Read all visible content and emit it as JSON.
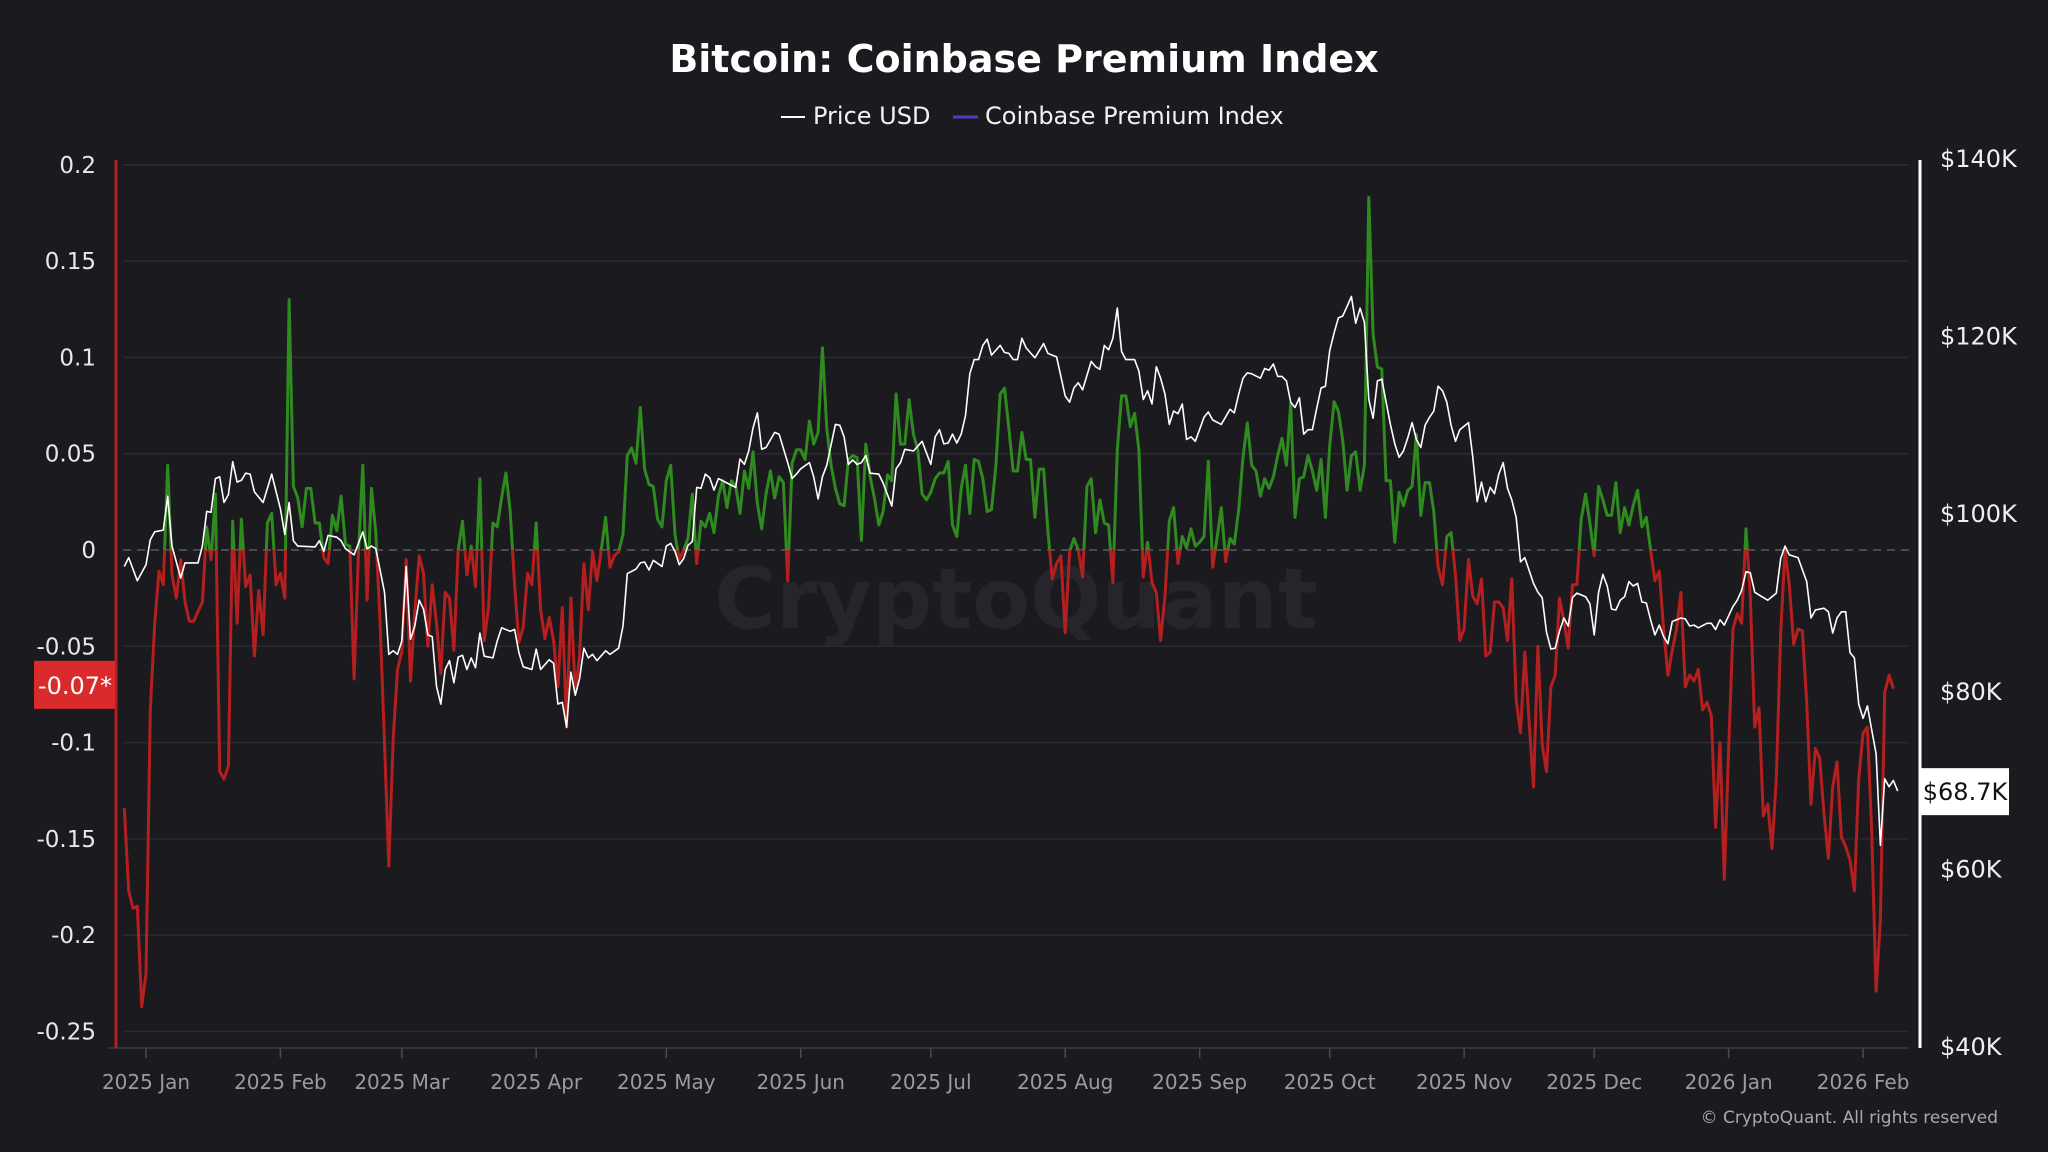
{
  "chart_data": {
    "type": "line",
    "title": "Bitcoin: Coinbase Premium Index",
    "legend": {
      "placement": "top-center",
      "items": [
        {
          "name": "Price USD",
          "color": "#ffffff"
        },
        {
          "name": "Coinbase Premium Index",
          "color": "#4b3fc7"
        }
      ]
    },
    "x_ticks": [
      "2025 Jan",
      "2025 Feb",
      "2025 Mar",
      "2025 Apr",
      "2025 May",
      "2025 Jun",
      "2025 Jul",
      "2025 Aug",
      "2025 Sep",
      "2025 Oct",
      "2025 Nov",
      "2025 Dec",
      "2026 Jan",
      "2026 Feb"
    ],
    "x_tick_dates": [
      "2025-01-01",
      "2025-02-01",
      "2025-03-01",
      "2025-04-01",
      "2025-05-01",
      "2025-06-01",
      "2025-07-01",
      "2025-08-01",
      "2025-09-01",
      "2025-10-01",
      "2025-11-01",
      "2025-12-01",
      "2026-01-01",
      "2026-02-01"
    ],
    "left_axis": {
      "ylim": [
        -0.25,
        0.2
      ],
      "ticks": [
        "0.2",
        "0.15",
        "0.1",
        "0.05",
        "0",
        "-0.05",
        "-0.1",
        "-0.15",
        "-0.2",
        "-0.25"
      ],
      "tick_values": [
        0.2,
        0.15,
        0.1,
        0.05,
        0,
        -0.05,
        -0.1,
        -0.15,
        -0.2,
        -0.25
      ]
    },
    "right_axis": {
      "ylim": [
        40,
        140
      ],
      "unit": "K USD",
      "ticks": [
        "$140K",
        "$120K",
        "$100K",
        "$80K",
        "$60K",
        "$40K"
      ],
      "tick_values": [
        140,
        120,
        100,
        80,
        60,
        40
      ]
    },
    "current_premium_label": "-0.07*",
    "current_premium_value": -0.07,
    "current_price_label": "$68.7K",
    "current_price_value": 68.7,
    "grid": true,
    "zero_line": "dashed",
    "colors": {
      "positive": "#2f8a1f",
      "negative": "#b3201f",
      "price": "#ffffff",
      "badge_premium": "#d92b2b",
      "badge_price": "#ffffff"
    },
    "series": [
      {
        "name": "Coinbase Premium Index",
        "axis": "left",
        "daily_values_by_month": {
          "2024-12": [
            null,
            null,
            null,
            null,
            null,
            null,
            null,
            null,
            null,
            null,
            null,
            null,
            null,
            null,
            null,
            null,
            null,
            null,
            null,
            null,
            null,
            null,
            null,
            null,
            null,
            null,
            -0.134,
            -0.177,
            -0.186,
            -0.185,
            -0.237
          ],
          "2025-01": [
            -0.22,
            -0.083,
            -0.038,
            -0.011,
            -0.018,
            0.044,
            -0.013,
            -0.025,
            -0.005,
            -0.027,
            -0.037,
            -0.037,
            -0.032,
            -0.027,
            0.012,
            -0.005,
            0.029,
            -0.115,
            -0.119,
            -0.112,
            0.015,
            -0.038,
            0.016,
            -0.019,
            -0.013,
            -0.055,
            -0.021,
            -0.044,
            0.014,
            0.019,
            -0.018
          ],
          "2025-02": [
            -0.012,
            -0.025,
            0.13,
            0.033,
            0.027,
            0.012,
            0.032,
            0.032,
            0.014,
            0.014,
            -0.004,
            -0.007,
            0.018,
            0.01,
            0.028,
            0.003,
            0.002,
            -0.067,
            -0.001,
            0.044,
            -0.026,
            0.032,
            0.009,
            -0.038,
            -0.1,
            -0.164,
            -0.098,
            -0.062
          ],
          "2025-03": [
            -0.053,
            -0.005,
            -0.068,
            -0.032,
            -0.003,
            -0.012,
            -0.05,
            -0.018,
            -0.038,
            -0.064,
            -0.022,
            -0.025,
            -0.052,
            0.0,
            0.015,
            -0.013,
            0.002,
            -0.019,
            0.037,
            -0.047,
            -0.03,
            0.014,
            0.012,
            0.027,
            0.04,
            0.02,
            -0.018,
            -0.048,
            -0.04,
            -0.012,
            -0.018
          ],
          "2025-04": [
            0.014,
            -0.031,
            -0.046,
            -0.035,
            -0.047,
            -0.071,
            -0.03,
            -0.092,
            -0.025,
            -0.074,
            -0.055,
            -0.007,
            -0.031,
            -0.001,
            -0.016,
            0.0,
            0.017,
            -0.009,
            -0.003,
            -0.001,
            0.008,
            0.049,
            0.053,
            0.045,
            0.074,
            0.042,
            0.034,
            0.033,
            0.016,
            0.012
          ],
          "2025-05": [
            0.036,
            0.044,
            0.008,
            -0.005,
            0.0,
            0.006,
            0.029,
            -0.007,
            0.015,
            0.012,
            0.019,
            0.009,
            0.028,
            0.036,
            0.022,
            0.036,
            0.033,
            0.019,
            0.041,
            0.032,
            0.051,
            0.024,
            0.011,
            0.029,
            0.041,
            0.027,
            0.038,
            0.035,
            -0.016,
            0.045,
            0.052
          ],
          "2025-06": [
            0.052,
            0.047,
            0.067,
            0.055,
            0.061,
            0.105,
            0.063,
            0.044,
            0.032,
            0.024,
            0.023,
            0.047,
            0.049,
            0.048,
            0.005,
            0.055,
            0.038,
            0.027,
            0.013,
            0.02,
            0.039,
            0.036,
            0.081,
            0.055,
            0.055,
            0.078,
            0.06,
            0.052,
            0.029,
            0.026
          ],
          "2025-07": [
            0.03,
            0.037,
            0.04,
            0.04,
            0.046,
            0.013,
            0.007,
            0.032,
            0.044,
            0.019,
            0.047,
            0.046,
            0.037,
            0.02,
            0.021,
            0.044,
            0.081,
            0.084,
            0.063,
            0.041,
            0.041,
            0.061,
            0.047,
            0.047,
            0.017,
            0.042,
            0.042,
            0.01,
            -0.015,
            -0.007,
            -0.003
          ],
          "2025-08": [
            -0.043,
            -0.001,
            0.006,
            0.0,
            -0.014,
            0.033,
            0.037,
            0.009,
            0.026,
            0.014,
            0.013,
            -0.017,
            0.052,
            0.08,
            0.08,
            0.064,
            0.071,
            0.052,
            -0.014,
            0.004,
            -0.017,
            -0.022,
            -0.047,
            -0.024,
            0.015,
            0.022,
            -0.007,
            0.007,
            0.001,
            0.011,
            0.002
          ],
          "2025-09": [
            0.004,
            0.007,
            0.046,
            -0.009,
            0.006,
            0.022,
            -0.006,
            0.006,
            0.003,
            0.021,
            0.048,
            0.066,
            0.044,
            0.041,
            0.028,
            0.037,
            0.032,
            0.038,
            0.049,
            0.058,
            0.044,
            0.076,
            0.017,
            0.037,
            0.038,
            0.049,
            0.041,
            0.031,
            0.047,
            0.017
          ],
          "2025-10": [
            0.054,
            0.077,
            0.072,
            0.057,
            0.031,
            0.049,
            0.051,
            0.031,
            0.044,
            0.183,
            0.112,
            0.095,
            0.094,
            0.036,
            0.036,
            0.004,
            0.03,
            0.023,
            0.031,
            0.033,
            0.06,
            0.018,
            0.035,
            0.035,
            0.02,
            -0.009,
            -0.018,
            0.007,
            0.009,
            -0.013,
            -0.047
          ],
          "2025-11": [
            -0.041,
            -0.005,
            -0.024,
            -0.028,
            -0.015,
            -0.055,
            -0.053,
            -0.027,
            -0.027,
            -0.03,
            -0.047,
            -0.015,
            -0.078,
            -0.095,
            -0.053,
            -0.09,
            -0.123,
            -0.05,
            -0.101,
            -0.115,
            -0.071,
            -0.065,
            -0.025,
            -0.037,
            -0.051,
            -0.018,
            -0.018,
            0.016,
            0.029,
            0.014
          ],
          "2025-12": [
            -0.003,
            0.033,
            0.026,
            0.018,
            0.018,
            0.035,
            0.009,
            0.022,
            0.013,
            0.023,
            0.031,
            0.012,
            0.017,
            0.0,
            -0.016,
            -0.011,
            -0.041,
            -0.065,
            -0.052,
            -0.041,
            -0.022,
            -0.071,
            -0.065,
            -0.068,
            -0.062,
            -0.083,
            -0.079,
            -0.086,
            -0.144,
            -0.1,
            -0.171
          ],
          "2026-01": [
            -0.104,
            -0.041,
            -0.033,
            -0.038,
            0.011,
            -0.024,
            -0.092,
            -0.082,
            -0.138,
            -0.132,
            -0.155,
            -0.119,
            -0.043,
            0.0,
            -0.018,
            -0.049,
            -0.041,
            -0.042,
            -0.079,
            -0.132,
            -0.103,
            -0.108,
            -0.137,
            -0.16,
            -0.123,
            -0.11,
            -0.149,
            -0.154,
            -0.161,
            -0.177,
            -0.119
          ],
          "2026-02": [
            -0.095,
            -0.092,
            -0.146,
            -0.229,
            -0.192,
            -0.074,
            -0.065,
            -0.072
          ]
        }
      },
      {
        "name": "Price USD",
        "axis": "right",
        "unit": "K USD",
        "daily_values_by_month": {
          "2024-12": [
            null,
            null,
            null,
            null,
            null,
            null,
            null,
            null,
            null,
            null,
            null,
            null,
            null,
            null,
            null,
            null,
            null,
            null,
            null,
            null,
            null,
            null,
            null,
            null,
            null,
            null,
            94.0,
            95.0,
            null,
            92.4,
            null
          ],
          "2025-01": [
            94.2,
            97.0,
            97.9,
            null,
            98.1,
            101.9,
            96.3,
            null,
            92.7,
            94.4,
            null,
            null,
            94.4,
            96.3,
            100.2,
            100.1,
            103.9,
            104.1,
            101.2,
            102.1,
            105.8,
            103.5,
            103.7,
            104.5,
            104.4,
            102.4,
            null,
            101.2,
            null,
            104.4,
            null
          ],
          "2025-02": [
            100.5,
            97.6,
            101.2,
            96.9,
            96.3,
            null,
            null,
            null,
            96.2,
            96.9,
            95.7,
            97.5,
            null,
            97.3,
            96.9,
            96.0,
            null,
            95.3,
            null,
            97.9,
            96.0,
            96.3,
            96.0,
            null,
            91.1,
            84.1,
            84.5,
            84.1
          ],
          "2025-03": [
            85.6,
            94.0,
            85.8,
            87.3,
            90.2,
            89.2,
            86.3,
            86.1,
            80.5,
            78.5,
            82.4,
            83.4,
            80.9,
            83.8,
            84.0,
            82.4,
            83.7,
            82.6,
            86.5,
            83.9,
            null,
            83.7,
            85.6,
            87.1,
            null,
            86.7,
            86.9,
            84.3,
            82.7,
            null,
            82.4
          ],
          "2025-04": [
            84.7,
            82.4,
            null,
            83.5,
            83.1,
            78.5,
            78.7,
            75.9,
            82.1,
            79.5,
            81.4,
            84.8,
            83.7,
            84.1,
            83.4,
            null,
            84.5,
            84.1,
            null,
            84.8,
            87.3,
            93.2,
            null,
            93.7,
            94.4,
            94.5,
            93.6,
            94.7,
            null,
            94.0
          ],
          "2025-05": [
            96.3,
            96.6,
            95.7,
            94.2,
            94.9,
            96.4,
            96.8,
            102.9,
            102.8,
            104.4,
            104.0,
            102.6,
            103.9,
            null,
            103.4,
            null,
            102.9,
            106.1,
            105.5,
            107.0,
            109.6,
            111.3,
            107.2,
            107.4,
            null,
            109.1,
            108.9,
            null,
            105.7,
            103.9,
            104.4
          ],
          "2025-06": [
            105.0,
            null,
            105.7,
            104.1,
            101.6,
            104.1,
            105.4,
            null,
            110.0,
            109.9,
            108.6,
            105.5,
            106.0,
            105.5,
            105.7,
            106.5,
            104.5,
            null,
            104.4,
            103.4,
            null,
            100.8,
            105.0,
            105.7,
            107.2,
            null,
            107.0,
            null,
            108.1,
            null
          ],
          "2025-07": [
            105.5,
            108.6,
            109.4,
            107.8,
            107.9,
            108.9,
            107.9,
            108.9,
            111.0,
            115.7,
            117.3,
            117.3,
            118.9,
            119.6,
            117.8,
            null,
            118.9,
            118.1,
            118.0,
            117.3,
            117.3,
            119.7,
            118.6,
            null,
            117.5,
            null,
            119.1,
            118.0,
            null,
            117.6,
            null
          ],
          "2025-08": [
            113.2,
            112.5,
            114.1,
            114.7,
            113.9,
            null,
            117.1,
            116.5,
            116.2,
            118.9,
            118.4,
            119.7,
            123.1,
            118.2,
            117.3,
            null,
            117.3,
            116.0,
            112.8,
            113.8,
            112.3,
            116.5,
            115.2,
            113.4,
            110.0,
            111.5,
            111.2,
            112.3,
            108.3,
            108.6,
            108.1
          ],
          "2025-09": [
            null,
            110.8,
            111.4,
            110.5,
            null,
            110.0,
            null,
            111.7,
            111.3,
            113.4,
            115.2,
            115.8,
            115.7,
            null,
            115.2,
            116.3,
            116.1,
            116.8,
            115.4,
            115.4,
            114.9,
            112.5,
            111.9,
            113.0,
            108.9,
            109.4,
            109.4,
            111.8,
            114.1,
            114.3
          ],
          "2025-10": [
            118.3,
            120.3,
            122.0,
            122.2,
            123.3,
            124.4,
            121.4,
            123.1,
            121.5,
            112.8,
            110.7,
            114.9,
            115.1,
            112.5,
            110.0,
            107.8,
            106.3,
            107.0,
            108.5,
            110.2,
            108.3,
            107.4,
            109.9,
            110.8,
            111.5,
            114.3,
            113.8,
            112.5,
            109.9,
            108.1,
            109.4
          ],
          "2025-11": [
            null,
            110.2,
            106.3,
            101.3,
            103.5,
            101.3,
            102.9,
            102.2,
            104.4,
            105.7,
            102.8,
            101.5,
            99.5,
            94.5,
            95.0,
            null,
            92.1,
            91.1,
            90.5,
            86.6,
            84.7,
            84.8,
            86.7,
            88.2,
            87.3,
            90.5,
            91.0,
            null,
            90.6,
            89.8
          ],
          "2025-12": [
            86.3,
            91.1,
            93.1,
            91.8,
            89.2,
            89.1,
            90.2,
            90.6,
            92.3,
            91.8,
            92.1,
            90.0,
            89.9,
            88.0,
            86.3,
            87.4,
            86.1,
            85.3,
            87.8,
            88.0,
            88.2,
            88.1,
            87.3,
            87.4,
            87.1,
            null,
            87.6,
            87.6,
            86.9,
            88.0,
            87.4
          ],
          "2026-01": [
            null,
            89.5,
            90.2,
            91.3,
            93.4,
            93.3,
            91.1,
            90.8,
            null,
            90.2,
            null,
            91.0,
            94.9,
            96.3,
            95.3,
            null,
            95.0,
            null,
            92.3,
            88.2,
            89.1,
            null,
            89.3,
            88.9,
            86.5,
            88.2,
            88.9,
            88.9,
            84.3,
            83.7,
            78.5
          ],
          "2026-02": [
            76.9,
            78.3,
            75.6,
            72.9,
            62.6,
            70.1,
            69.2,
            69.9,
            68.7
          ]
        }
      }
    ]
  },
  "watermark": "CryptoQuant",
  "footer": {
    "copyright": "© CryptoQuant. All rights reserved"
  }
}
